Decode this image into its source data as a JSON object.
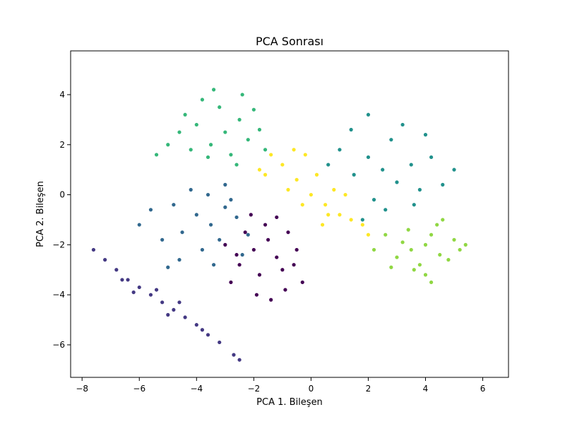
{
  "chart_data": {
    "type": "scatter",
    "title": "PCA Sonrası",
    "xlabel": "PCA 1. Bileşen",
    "ylabel": "PCA 2. Bileşen",
    "xlim": [
      -8.4,
      6.9
    ],
    "ylim": [
      -7.3,
      5.75
    ],
    "xticks": [
      -8,
      -6,
      -4,
      -2,
      0,
      2,
      4,
      6
    ],
    "xtick_labels": [
      "−8",
      "−6",
      "−4",
      "−2",
      "0",
      "2",
      "4",
      "6"
    ],
    "yticks": [
      -6,
      -4,
      -2,
      0,
      2,
      4
    ],
    "ytick_labels": [
      "−6",
      "−4",
      "−2",
      "0",
      "2",
      "4"
    ],
    "grid": false,
    "legend": "none",
    "series": [
      {
        "color": "#440154",
        "points": [
          [
            -2.0,
            -2.2
          ],
          [
            -1.5,
            -1.8
          ],
          [
            -2.5,
            -2.8
          ],
          [
            -1.2,
            -2.5
          ],
          [
            -1.8,
            -3.2
          ],
          [
            -0.8,
            -1.5
          ],
          [
            -2.3,
            -1.5
          ],
          [
            -1.0,
            -3.0
          ],
          [
            -2.8,
            -3.5
          ],
          [
            -1.4,
            -4.2
          ],
          [
            -0.5,
            -2.2
          ],
          [
            -2.1,
            -0.8
          ],
          [
            -3.0,
            -2.0
          ],
          [
            -0.9,
            -3.8
          ],
          [
            -1.6,
            -1.2
          ],
          [
            -2.6,
            -2.4
          ],
          [
            -0.3,
            -3.5
          ],
          [
            -1.9,
            -4.0
          ],
          [
            -0.6,
            -2.8
          ],
          [
            -1.2,
            -0.9
          ]
        ]
      },
      {
        "color": "#443983",
        "points": [
          [
            -7.2,
            -2.6
          ],
          [
            -6.8,
            -3.0
          ],
          [
            -6.4,
            -3.4
          ],
          [
            -6.0,
            -3.7
          ],
          [
            -5.6,
            -4.0
          ],
          [
            -5.2,
            -4.3
          ],
          [
            -4.8,
            -4.6
          ],
          [
            -4.4,
            -4.9
          ],
          [
            -4.0,
            -5.2
          ],
          [
            -3.6,
            -5.6
          ],
          [
            -3.2,
            -5.9
          ],
          [
            -2.7,
            -6.4
          ],
          [
            -7.6,
            -2.2
          ],
          [
            -6.2,
            -3.9
          ],
          [
            -5.4,
            -3.8
          ],
          [
            -4.6,
            -4.3
          ],
          [
            -5.0,
            -4.8
          ],
          [
            -3.8,
            -5.4
          ],
          [
            -2.5,
            -6.6
          ],
          [
            -6.6,
            -3.4
          ]
        ]
      },
      {
        "color": "#31688e",
        "points": [
          [
            -4.0,
            -0.8
          ],
          [
            -3.5,
            -1.2
          ],
          [
            -3.0,
            -0.5
          ],
          [
            -4.5,
            -1.5
          ],
          [
            -3.2,
            -1.8
          ],
          [
            -2.6,
            -0.9
          ],
          [
            -4.8,
            -0.4
          ],
          [
            -3.8,
            -2.2
          ],
          [
            -2.2,
            -1.6
          ],
          [
            -5.2,
            -1.8
          ],
          [
            -4.2,
            0.2
          ],
          [
            -3.0,
            0.4
          ],
          [
            -5.6,
            -0.6
          ],
          [
            -2.4,
            -2.4
          ],
          [
            -4.6,
            -2.6
          ],
          [
            -3.4,
            -2.8
          ],
          [
            -5.0,
            -2.9
          ],
          [
            -3.6,
            0.0
          ],
          [
            -2.8,
            -0.2
          ],
          [
            -6.0,
            -1.2
          ]
        ]
      },
      {
        "color": "#21918c",
        "points": [
          [
            2.5,
            1.0
          ],
          [
            3.0,
            0.5
          ],
          [
            2.0,
            1.5
          ],
          [
            3.5,
            1.2
          ],
          [
            2.8,
            2.2
          ],
          [
            1.5,
            0.8
          ],
          [
            3.8,
            0.2
          ],
          [
            2.2,
            -0.2
          ],
          [
            4.2,
            1.5
          ],
          [
            1.0,
            1.8
          ],
          [
            3.2,
            2.8
          ],
          [
            2.6,
            -0.6
          ],
          [
            4.6,
            0.4
          ],
          [
            1.4,
            2.6
          ],
          [
            3.6,
            -0.4
          ],
          [
            0.6,
            1.2
          ],
          [
            4.0,
            2.4
          ],
          [
            2.0,
            3.2
          ],
          [
            5.0,
            1.0
          ],
          [
            1.8,
            -1.0
          ]
        ]
      },
      {
        "color": "#35b779",
        "points": [
          [
            -3.0,
            2.5
          ],
          [
            -3.5,
            2.0
          ],
          [
            -2.5,
            3.0
          ],
          [
            -4.0,
            2.8
          ],
          [
            -3.2,
            3.5
          ],
          [
            -2.2,
            2.2
          ],
          [
            -4.2,
            1.8
          ],
          [
            -3.6,
            1.5
          ],
          [
            -2.8,
            1.6
          ],
          [
            -4.6,
            2.5
          ],
          [
            -2.0,
            3.4
          ],
          [
            -3.8,
            3.8
          ],
          [
            -2.6,
            1.2
          ],
          [
            -5.0,
            2.0
          ],
          [
            -1.8,
            2.6
          ],
          [
            -3.4,
            4.2
          ],
          [
            -4.4,
            3.2
          ],
          [
            -2.4,
            4.0
          ],
          [
            -5.4,
            1.6
          ],
          [
            -1.6,
            1.8
          ]
        ]
      },
      {
        "color": "#90d743",
        "points": [
          [
            4.0,
            -2.0
          ],
          [
            4.5,
            -2.4
          ],
          [
            3.5,
            -2.2
          ],
          [
            5.0,
            -1.8
          ],
          [
            4.2,
            -1.6
          ],
          [
            3.8,
            -2.8
          ],
          [
            4.8,
            -2.6
          ],
          [
            3.2,
            -1.9
          ],
          [
            4.4,
            -1.2
          ],
          [
            3.6,
            -3.0
          ],
          [
            5.2,
            -2.2
          ],
          [
            3.0,
            -2.5
          ],
          [
            4.0,
            -3.2
          ],
          [
            2.6,
            -1.6
          ],
          [
            4.6,
            -1.0
          ],
          [
            2.8,
            -2.9
          ],
          [
            5.4,
            -2.0
          ],
          [
            3.4,
            -1.4
          ],
          [
            2.2,
            -2.2
          ],
          [
            4.2,
            -3.5
          ]
        ]
      },
      {
        "color": "#fde725",
        "points": [
          [
            0.0,
            0.0
          ],
          [
            -0.5,
            0.6
          ],
          [
            0.5,
            -0.4
          ],
          [
            1.0,
            -0.8
          ],
          [
            -1.0,
            1.2
          ],
          [
            0.2,
            0.8
          ],
          [
            -0.3,
            -0.4
          ],
          [
            1.4,
            -1.0
          ],
          [
            -1.4,
            1.6
          ],
          [
            0.8,
            0.2
          ],
          [
            -0.8,
            0.2
          ],
          [
            1.8,
            -1.2
          ],
          [
            -1.6,
            0.8
          ],
          [
            0.4,
            -1.2
          ],
          [
            -0.2,
            1.6
          ],
          [
            2.0,
            -1.6
          ],
          [
            -1.8,
            1.0
          ],
          [
            1.2,
            0.0
          ],
          [
            -0.6,
            1.8
          ],
          [
            0.6,
            -0.8
          ]
        ]
      }
    ]
  }
}
